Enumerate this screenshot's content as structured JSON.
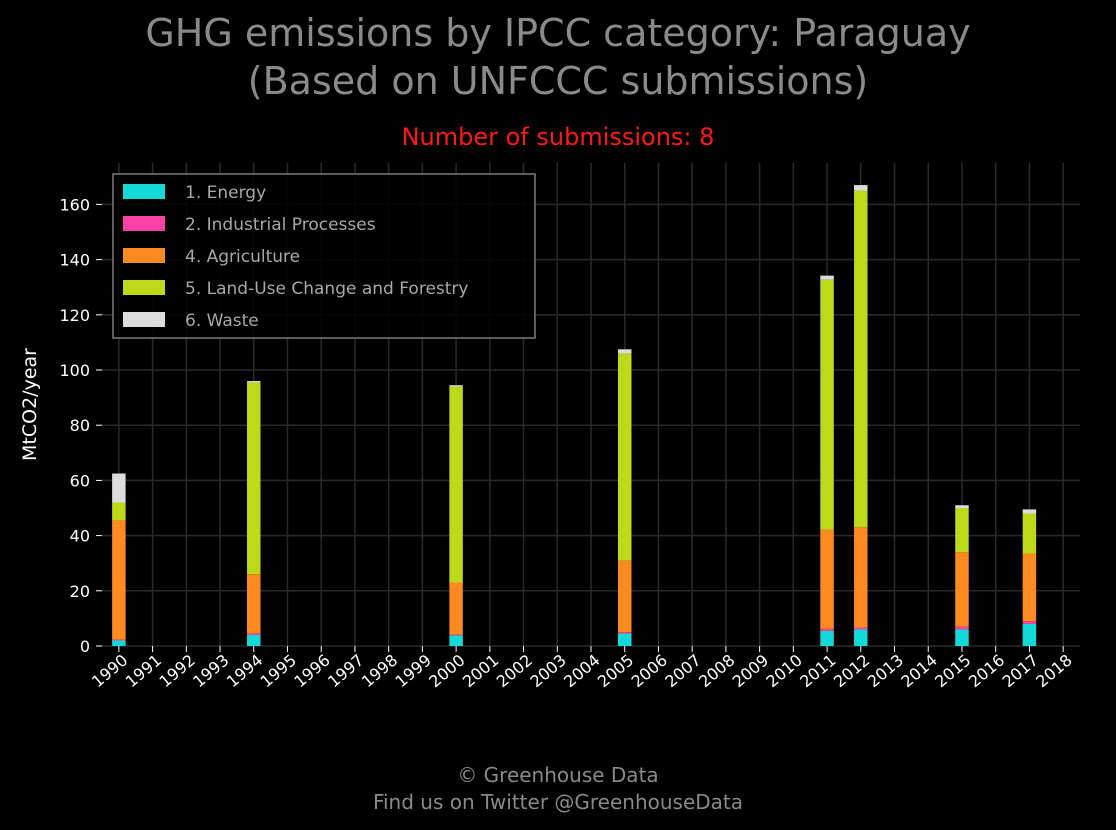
{
  "title_line1": "GHG emissions by IPCC category: Paraguay",
  "title_line2": "(Based on UNFCCC submissions)",
  "subtitle": "Number of submissions: 8",
  "footer_line1": "© Greenhouse Data",
  "footer_line2": "Find us on Twitter @GreenhouseData",
  "colors": {
    "background": "#000000",
    "grid": "#2a2a2a",
    "title": "#8a8a8a",
    "subtitle": "#ff1a1a"
  },
  "chart_data": {
    "type": "bar",
    "stacked": true,
    "ylabel": "MtCO2/year",
    "ylim": [
      0,
      175
    ],
    "yticks": [
      0,
      20,
      40,
      60,
      80,
      100,
      120,
      140,
      160
    ],
    "grid": true,
    "legend_position": "top-left",
    "categories": [
      "1990",
      "1991",
      "1992",
      "1993",
      "1994",
      "1995",
      "1996",
      "1997",
      "1998",
      "1999",
      "2000",
      "2001",
      "2002",
      "2003",
      "2004",
      "2005",
      "2006",
      "2007",
      "2008",
      "2009",
      "2010",
      "2011",
      "2012",
      "2013",
      "2014",
      "2015",
      "2016",
      "2017",
      "2018"
    ],
    "series": [
      {
        "name": "1. Energy",
        "color": "#14d9d9",
        "values": [
          2,
          0,
          0,
          0,
          4,
          0,
          0,
          0,
          0,
          0,
          3.8,
          0,
          0,
          0,
          0,
          4.5,
          0,
          0,
          0,
          0,
          0,
          5.5,
          6,
          0,
          0,
          6,
          0,
          8,
          0
        ]
      },
      {
        "name": "2. Industrial Processes",
        "color": "#ff40a6",
        "values": [
          0.3,
          0,
          0,
          0,
          0.5,
          0,
          0,
          0,
          0,
          0,
          0.3,
          0,
          0,
          0,
          0,
          0.5,
          0,
          0,
          0,
          0,
          0,
          0.7,
          0.7,
          0,
          0,
          1,
          0,
          1,
          0
        ]
      },
      {
        "name": "4. Agriculture",
        "color": "#ff8a1f",
        "values": [
          43.2,
          0,
          0,
          0,
          21.5,
          0,
          0,
          0,
          0,
          0,
          18.9,
          0,
          0,
          0,
          0,
          26,
          0,
          0,
          0,
          0,
          0,
          36,
          36.3,
          0,
          0,
          27,
          0,
          24.5,
          0
        ]
      },
      {
        "name": "5. Land-Use Change and Forestry",
        "color": "#bdd91a",
        "values": [
          6.5,
          0,
          0,
          0,
          69.5,
          0,
          0,
          0,
          0,
          0,
          71,
          0,
          0,
          0,
          0,
          75,
          0,
          0,
          0,
          0,
          0,
          90.5,
          122,
          0,
          0,
          16,
          0,
          14.5,
          0
        ]
      },
      {
        "name": "6. Waste",
        "color": "#dcdcdc",
        "values": [
          10.5,
          0,
          0,
          0,
          0.5,
          0,
          0,
          0,
          0,
          0,
          0.5,
          0,
          0,
          0,
          0,
          1.5,
          0,
          0,
          0,
          0,
          0,
          1.5,
          2,
          0,
          0,
          1,
          0,
          1.5,
          0
        ]
      }
    ]
  }
}
